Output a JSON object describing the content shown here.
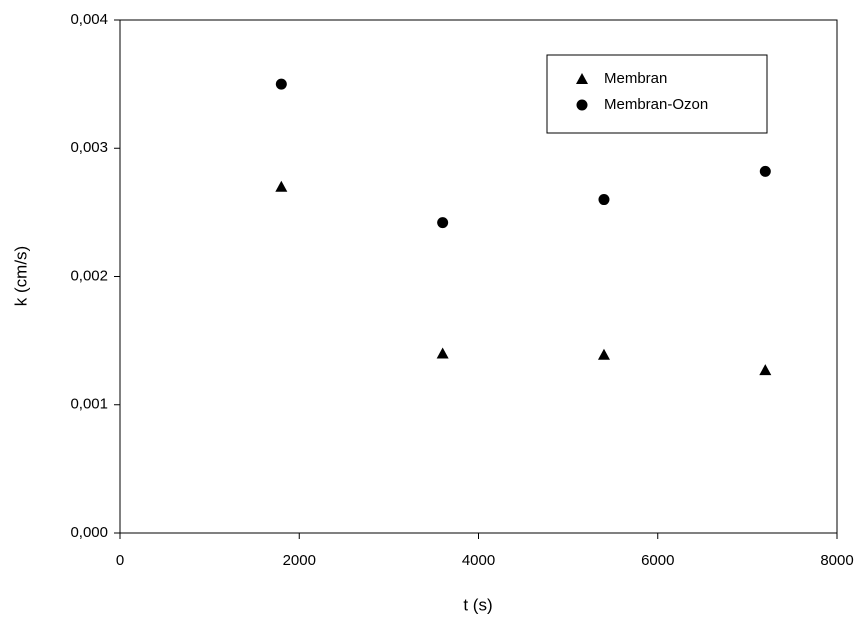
{
  "chart_data": {
    "type": "scatter",
    "x_label": "t (s)",
    "y_label": "k (cm/s)",
    "xlim": [
      0,
      8000
    ],
    "xticks": [
      0,
      2000,
      4000,
      6000,
      8000
    ],
    "ylim": [
      0,
      0.004
    ],
    "yticks": [
      {
        "value": 0,
        "label": "0,000"
      },
      {
        "value": 0.001,
        "label": "0,001"
      },
      {
        "value": 0.002,
        "label": "0,002"
      },
      {
        "value": 0.003,
        "label": "0,003"
      },
      {
        "value": 0.004,
        "label": "0,004"
      }
    ],
    "legend": "upper right",
    "series": [
      {
        "name": "Membran",
        "color": "#000000",
        "marker": "triangle",
        "x": [
          1800,
          3600,
          5400,
          7200
        ],
        "values": [
          0.0027,
          0.0014,
          0.00139,
          0.00127
        ]
      },
      {
        "name": "Membran-Ozon",
        "color": "#000000",
        "marker": "circle",
        "x": [
          1800,
          3600,
          5400,
          7200
        ],
        "values": [
          0.0035,
          0.00242,
          0.0026,
          0.00282
        ]
      }
    ]
  }
}
